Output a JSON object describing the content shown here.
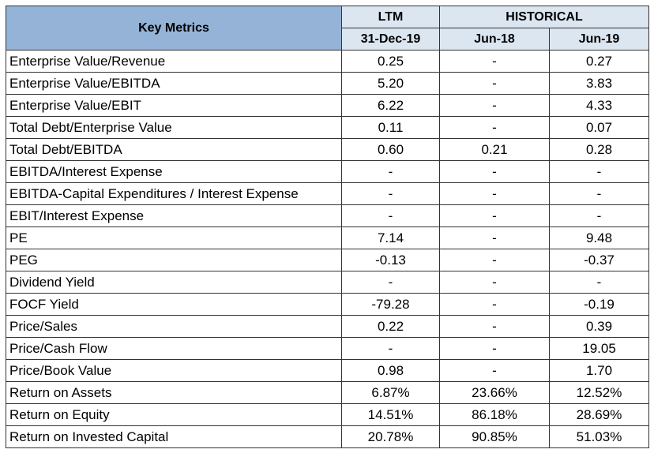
{
  "header": {
    "key_metrics": "Key Metrics",
    "ltm": "LTM",
    "historical": "HISTORICAL",
    "dates": [
      "31-Dec-19",
      "Jun-18",
      "Jun-19"
    ]
  },
  "rows": [
    {
      "label": "Enterprise Value/Revenue",
      "values": [
        "0.25",
        "-",
        "0.27"
      ]
    },
    {
      "label": "Enterprise Value/EBITDA",
      "values": [
        "5.20",
        "-",
        "3.83"
      ]
    },
    {
      "label": "Enterprise Value/EBIT",
      "values": [
        "6.22",
        "-",
        "4.33"
      ]
    },
    {
      "label": "Total Debt/Enterprise Value",
      "values": [
        "0.11",
        "-",
        "0.07"
      ]
    },
    {
      "label": "Total Debt/EBITDA",
      "values": [
        "0.60",
        "0.21",
        "0.28"
      ]
    },
    {
      "label": "EBITDA/Interest Expense",
      "values": [
        "-",
        "-",
        "-"
      ]
    },
    {
      "label": "EBITDA-Capital Expenditures / Interest Expense",
      "values": [
        "-",
        "-",
        "-"
      ]
    },
    {
      "label": "EBIT/Interest Expense",
      "values": [
        "-",
        "-",
        "-"
      ]
    },
    {
      "label": "PE",
      "values": [
        "7.14",
        "-",
        "9.48"
      ]
    },
    {
      "label": "PEG",
      "values": [
        "-0.13",
        "-",
        "-0.37"
      ]
    },
    {
      "label": "Dividend Yield",
      "values": [
        "-",
        "-",
        "-"
      ]
    },
    {
      "label": "FOCF Yield",
      "values": [
        "-79.28",
        "-",
        "-0.19"
      ]
    },
    {
      "label": "Price/Sales",
      "values": [
        "0.22",
        "-",
        "0.39"
      ]
    },
    {
      "label": "Price/Cash Flow",
      "values": [
        "-",
        "-",
        "19.05"
      ]
    },
    {
      "label": "Price/Book Value",
      "values": [
        "0.98",
        "-",
        "1.70"
      ]
    },
    {
      "label": "Return on Assets",
      "values": [
        "6.87%",
        "23.66%",
        "12.52%"
      ]
    },
    {
      "label": "Return on Equity",
      "values": [
        "14.51%",
        "86.18%",
        "28.69%"
      ]
    },
    {
      "label": "Return on Invested Capital",
      "values": [
        "20.78%",
        "90.85%",
        "51.03%"
      ]
    }
  ],
  "colors": {
    "key_metrics_header_bg": "#95b3d7",
    "group_header_bg": "#dce6f1",
    "border": "#333333"
  }
}
